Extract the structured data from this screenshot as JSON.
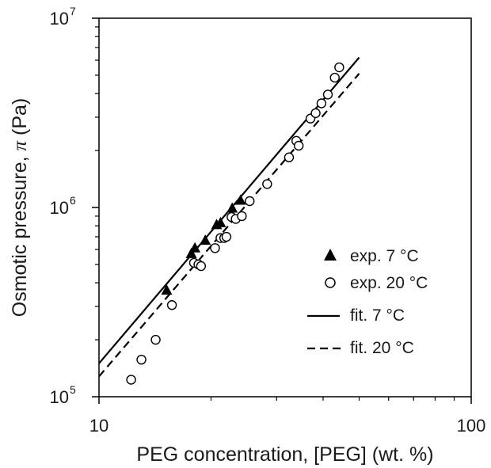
{
  "chart_data": {
    "type": "scatter",
    "xlabel": "PEG concentration, [PEG] (wt. %)",
    "ylabel_prefix": "Osmotic pressure, ",
    "ylabel_symbol": "π",
    "ylabel_suffix": " (Pa)",
    "xscale": "log",
    "yscale": "log",
    "xlim": [
      10,
      100
    ],
    "ylim": [
      100000,
      10000000
    ],
    "x_ticks": [
      {
        "value": 10,
        "label": "10"
      },
      {
        "value": 100,
        "label": "100"
      }
    ],
    "y_ticks": [
      {
        "value": 100000,
        "base": "10",
        "exp": "5"
      },
      {
        "value": 1000000,
        "base": "10",
        "exp": "6"
      },
      {
        "value": 10000000,
        "base": "10",
        "exp": "7"
      }
    ],
    "grid": false,
    "legend_position": "lower-right",
    "series": [
      {
        "name": "exp. 7 °C",
        "kind": "markers",
        "marker": "filled-triangle",
        "color": "#000000",
        "x": [
          15.2,
          17.7,
          18.1,
          19.3,
          20.7,
          21.2,
          22.8,
          24.0
        ],
        "y": [
          365000,
          570000,
          610000,
          670000,
          810000,
          830000,
          990000,
          1090000
        ]
      },
      {
        "name": "exp. 20 °C",
        "kind": "markers",
        "marker": "open-circle",
        "color": "#000000",
        "x": [
          12.2,
          13.0,
          14.2,
          15.7,
          18.0,
          18.5,
          18.8,
          20.5,
          21.2,
          21.7,
          22.0,
          22.7,
          23.3,
          24.2,
          25.4,
          28.3,
          32.4,
          33.9,
          34.4,
          37.0,
          38.2,
          39.6,
          41.2,
          43.0,
          44.2
        ],
        "y": [
          123000,
          157000,
          200000,
          305000,
          510000,
          500000,
          490000,
          610000,
          690000,
          690000,
          700000,
          890000,
          870000,
          900000,
          1080000,
          1330000,
          1840000,
          2250000,
          2120000,
          2950000,
          3150000,
          3550000,
          3950000,
          4850000,
          5500000
        ]
      },
      {
        "name": "fit. 7 °C",
        "kind": "line",
        "dash": "solid",
        "color": "#000000",
        "x": [
          10,
          50
        ],
        "y": [
          150000,
          6200000
        ]
      },
      {
        "name": "fit. 20 °C",
        "kind": "line",
        "dash": "dashed",
        "color": "#000000",
        "x": [
          10,
          50
        ],
        "y": [
          128000,
          5100000
        ]
      }
    ]
  }
}
